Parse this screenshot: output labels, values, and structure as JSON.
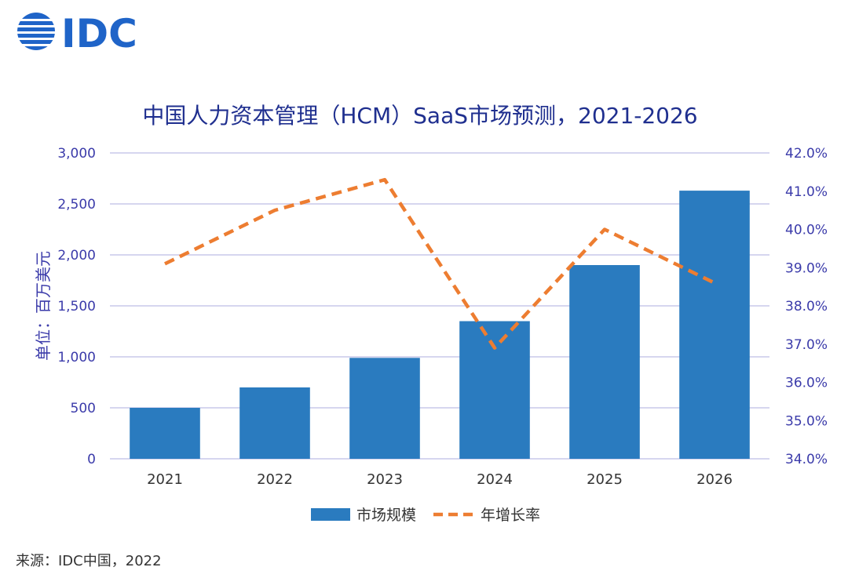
{
  "logo": {
    "text": "IDC",
    "color": "#1f64c8"
  },
  "colors": {
    "bar": "#2a7bbf",
    "line": "#ed7d31",
    "axis_text": "#3b3baa",
    "title": "#1f2f8f",
    "grid": "#c9c9ea"
  },
  "chart_data": {
    "type": "bar",
    "title": "中国人力资本管理（HCM）SaaS市场预测，2021-2026",
    "ylabel": "单位：百万美元",
    "categories": [
      "2021",
      "2022",
      "2023",
      "2024",
      "2025",
      "2026"
    ],
    "ylim": [
      0,
      3000
    ],
    "yticks": [
      "0",
      "500",
      "1,000",
      "1,500",
      "2,000",
      "2,500",
      "3,000"
    ],
    "y2lim": [
      34.0,
      42.0
    ],
    "y2ticks": [
      "34.0%",
      "35.0%",
      "36.0%",
      "37.0%",
      "38.0%",
      "39.0%",
      "40.0%",
      "41.0%",
      "42.0%"
    ],
    "grid": true,
    "legend_position": "bottom",
    "series": [
      {
        "name": "市场规模",
        "type": "bar",
        "axis": "left",
        "values": [
          500,
          700,
          990,
          1350,
          1900,
          2630
        ]
      },
      {
        "name": "年增长率",
        "type": "line",
        "style": "dashed",
        "axis": "right",
        "values": [
          39.1,
          40.5,
          41.3,
          36.9,
          40.0,
          38.6
        ]
      }
    ]
  },
  "source": "来源：IDC中国，2022"
}
